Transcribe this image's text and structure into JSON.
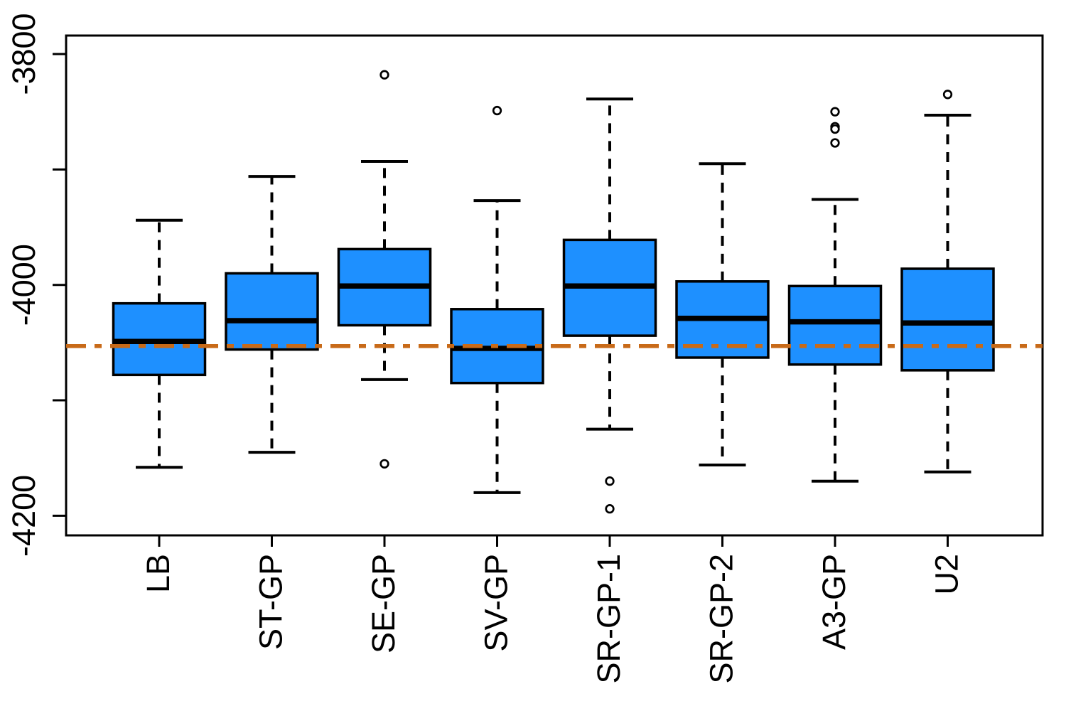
{
  "chart_data": {
    "type": "boxplot",
    "title": "",
    "xlabel": "",
    "ylabel": "",
    "grid": false,
    "legend_position": "none",
    "categories": [
      "LB",
      "ST-GP",
      "SE-GP",
      "SV-GP",
      "SR-GP-1",
      "SR-GP-2",
      "A3-GP",
      "U2"
    ],
    "boxes": [
      {
        "label": "LB",
        "whisker_low": -4158,
        "q1": -4078,
        "median": -4049,
        "q3": -4016,
        "whisker_high": -3944,
        "outliers": []
      },
      {
        "label": "ST-GP",
        "whisker_low": -4145,
        "q1": -4056,
        "median": -4031,
        "q3": -3990,
        "whisker_high": -3906,
        "outliers": []
      },
      {
        "label": "SE-GP",
        "whisker_low": -4082,
        "q1": -4035,
        "median": -4001,
        "q3": -3969,
        "whisker_high": -3893,
        "outliers": [
          -3818,
          -4155
        ]
      },
      {
        "label": "SV-GP",
        "whisker_low": -4180,
        "q1": -4085,
        "median": -4055,
        "q3": -4021,
        "whisker_high": -3927,
        "outliers": [
          -3849
        ]
      },
      {
        "label": "SR-GP-1",
        "whisker_low": -4125,
        "q1": -4044,
        "median": -4001,
        "q3": -3961,
        "whisker_high": -3839,
        "outliers": [
          -4170,
          -4194
        ]
      },
      {
        "label": "SR-GP-2",
        "whisker_low": -4156,
        "q1": -4063,
        "median": -4029,
        "q3": -3997,
        "whisker_high": -3895,
        "outliers": []
      },
      {
        "label": "A3-GP",
        "whisker_low": -4170,
        "q1": -4069,
        "median": -4032,
        "q3": -4001,
        "whisker_high": -3926,
        "outliers": [
          -3850,
          -3863,
          -3865,
          -3877
        ]
      },
      {
        "label": "U2",
        "whisker_low": -4162,
        "q1": -4074,
        "median": -4033,
        "q3": -3986,
        "whisker_high": -3853,
        "outliers": [
          -3835
        ]
      }
    ],
    "y_axis": {
      "tick_labels": [
        "-3800",
        "-4000",
        "-4200"
      ],
      "tick_values": [
        -3800,
        -4000,
        -4200
      ],
      "minor_tick_values": [
        -3900,
        -4100
      ],
      "ylim": [
        -4217,
        -3784
      ]
    },
    "reference_line": {
      "value": -4053,
      "style": "dashdot",
      "color": "#C86A18"
    },
    "colors": {
      "box_fill": "#1E90FF",
      "box_border": "#000000",
      "whisker": "#000000",
      "axis": "#000000",
      "background": "#FFFFFF"
    }
  }
}
